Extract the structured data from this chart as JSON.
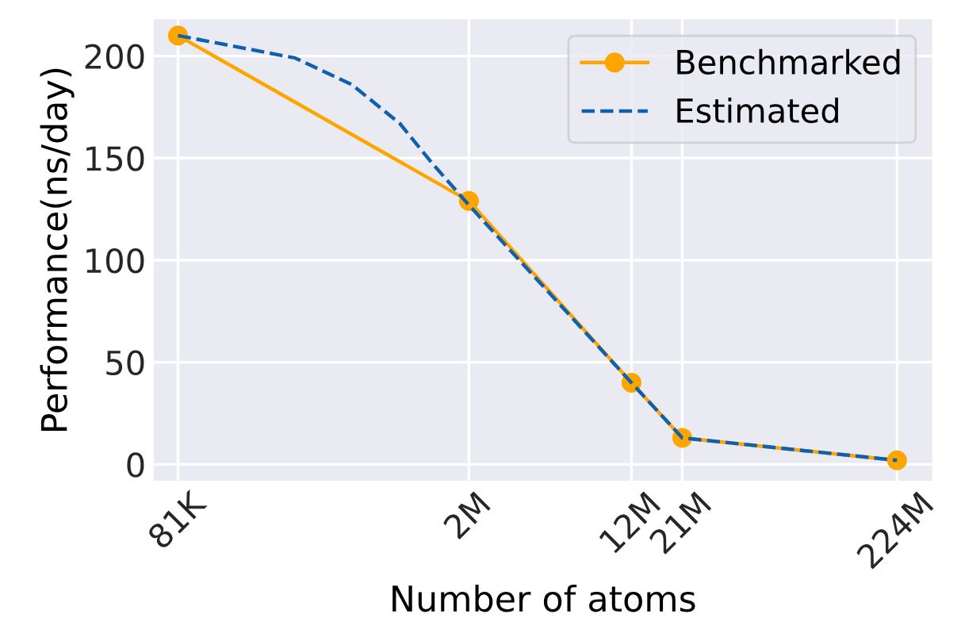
{
  "chart_data": {
    "type": "line",
    "xlabel": "Number of atoms",
    "ylabel": "Performance(ns/day)",
    "log": "x",
    "xlim": [
      62000,
      330000000
    ],
    "ylim": [
      -8,
      218
    ],
    "xticks": [
      {
        "value": 81000,
        "label": "81K"
      },
      {
        "value": 2000000,
        "label": "2M"
      },
      {
        "value": 12000000,
        "label": "12M"
      },
      {
        "value": 21000000,
        "label": "21M"
      },
      {
        "value": 224000000,
        "label": "224M"
      }
    ],
    "yticks": [
      0,
      50,
      100,
      150,
      200
    ],
    "grid": true,
    "legend": "top right",
    "series": [
      {
        "name": "Benchmarked",
        "color": "#ffa500",
        "marker": "circle",
        "line_style": "solid",
        "x": [
          81000,
          2000000,
          12000000,
          21000000,
          224000000
        ],
        "values": [
          210,
          129,
          40,
          13,
          2
        ]
      },
      {
        "name": "Estimated",
        "color": "#1060b0",
        "marker": "none",
        "line_style": "dashed",
        "x": [
          81000,
          295000,
          550000,
          933000,
          1320000,
          2000000,
          12000000,
          21000000,
          224000000
        ],
        "values": [
          210,
          199,
          186,
          167,
          148,
          127,
          40,
          13,
          2
        ]
      }
    ]
  }
}
